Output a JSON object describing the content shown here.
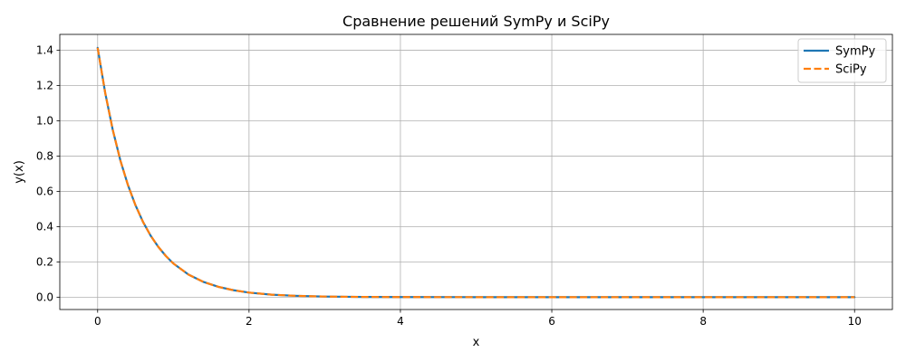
{
  "chart_data": {
    "type": "line",
    "title": "Сравнение решений SymPy и SciPy",
    "xlabel": "x",
    "ylabel": "y(x)",
    "xlim": [
      -0.5,
      10.5
    ],
    "ylim": [
      -0.07,
      1.49
    ],
    "x_ticks": [
      "0",
      "2",
      "4",
      "6",
      "8",
      "10"
    ],
    "y_ticks": [
      "0.0",
      "0.2",
      "0.4",
      "0.6",
      "0.8",
      "1.0",
      "1.2",
      "1.4"
    ],
    "grid": true,
    "legend_position": "top-right",
    "x": [
      0,
      0.1,
      0.2,
      0.3,
      0.4,
      0.5,
      0.6,
      0.7,
      0.8,
      0.9,
      1.0,
      1.2,
      1.4,
      1.6,
      1.8,
      2.0,
      2.3,
      2.6,
      3.0,
      3.5,
      4.0,
      5.0,
      6.0,
      7.0,
      8.0,
      9.0,
      10.0
    ],
    "series": [
      {
        "name": "SymPy",
        "color": "#1f77b4",
        "style": "solid",
        "values": [
          1.414,
          1.158,
          0.948,
          0.776,
          0.636,
          0.521,
          0.426,
          0.349,
          0.286,
          0.234,
          0.191,
          0.128,
          0.086,
          0.058,
          0.039,
          0.026,
          0.014,
          0.008,
          0.0035,
          0.0013,
          0.0005,
          0.0001,
          0.0,
          0.0,
          0.0,
          0.0,
          0.0
        ]
      },
      {
        "name": "SciPy",
        "color": "#ff7f0e",
        "style": "dashed",
        "values": [
          1.414,
          1.158,
          0.948,
          0.776,
          0.636,
          0.521,
          0.426,
          0.349,
          0.286,
          0.234,
          0.191,
          0.128,
          0.086,
          0.058,
          0.039,
          0.026,
          0.014,
          0.008,
          0.0035,
          0.0013,
          0.0005,
          0.0001,
          0.0,
          0.0,
          0.0,
          0.0,
          0.0
        ]
      }
    ]
  }
}
